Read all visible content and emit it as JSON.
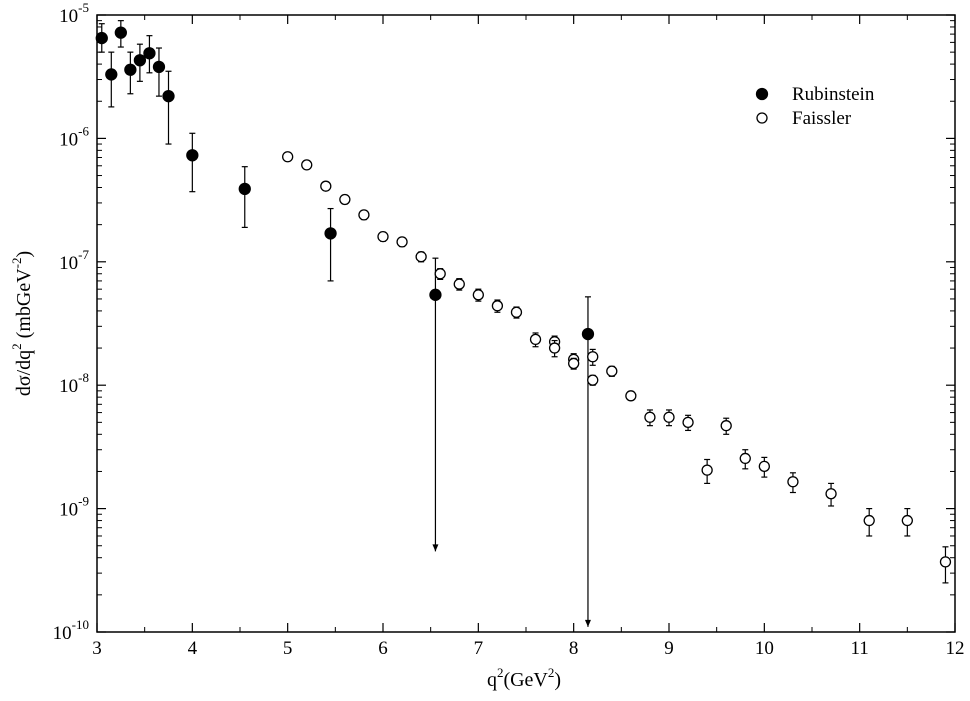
{
  "chart_data": {
    "type": "scatter",
    "title": "",
    "xlabel": {
      "base": "q",
      "sup1": "2",
      "middle": "(GeV",
      "sup2": "2",
      "end": ")"
    },
    "ylabel": {
      "base": "dσ/dq",
      "sup1": "2",
      "middle": " (mbGeV",
      "sup2": "-2",
      "end": ")"
    },
    "xlim": [
      3,
      12
    ],
    "ylim": [
      1e-10,
      1e-05
    ],
    "yscale": "log",
    "grid": false,
    "legend_position": "top-right",
    "x_ticks": [
      "3",
      "4",
      "5",
      "6",
      "7",
      "8",
      "9",
      "10",
      "11",
      "12"
    ],
    "y_ticks": [
      {
        "base": "10",
        "exp": "-10"
      },
      {
        "base": "10",
        "exp": "-9"
      },
      {
        "base": "10",
        "exp": "-8"
      },
      {
        "base": "10",
        "exp": "-7"
      },
      {
        "base": "10",
        "exp": "-6"
      },
      {
        "base": "10",
        "exp": "-5"
      }
    ],
    "series": [
      {
        "name": "Rubinstein",
        "marker": "filled-circle",
        "color": "#000000",
        "points": [
          {
            "x": 3.05,
            "y": 6.5e-06,
            "lo": 5e-06,
            "hi": 8.5e-06
          },
          {
            "x": 3.15,
            "y": 3.3e-06,
            "lo": 1.8e-06,
            "hi": 5e-06
          },
          {
            "x": 3.25,
            "y": 7.2e-06,
            "lo": 5.5e-06,
            "hi": 9e-06
          },
          {
            "x": 3.35,
            "y": 3.6e-06,
            "lo": 2.3e-06,
            "hi": 5e-06
          },
          {
            "x": 3.45,
            "y": 4.3e-06,
            "lo": 2.9e-06,
            "hi": 5.8e-06
          },
          {
            "x": 3.55,
            "y": 4.9e-06,
            "lo": 3.4e-06,
            "hi": 6.8e-06
          },
          {
            "x": 3.65,
            "y": 3.8e-06,
            "lo": 2.2e-06,
            "hi": 5.4e-06
          },
          {
            "x": 3.75,
            "y": 2.2e-06,
            "lo": 9e-07,
            "hi": 3.5e-06
          },
          {
            "x": 4.0,
            "y": 7.3e-07,
            "lo": 3.7e-07,
            "hi": 1.1e-06
          },
          {
            "x": 4.55,
            "y": 3.9e-07,
            "lo": 1.9e-07,
            "hi": 5.9e-07
          },
          {
            "x": 5.45,
            "y": 1.7e-07,
            "lo": 7e-08,
            "hi": 2.7e-07
          },
          {
            "x": 6.55,
            "y": 5.4e-08,
            "lo": 4.5e-10,
            "hi": 1.07e-07,
            "arrow_down": true
          },
          {
            "x": 8.15,
            "y": 2.6e-08,
            "lo": 1.1e-10,
            "hi": 5.2e-08,
            "arrow_down": true
          }
        ]
      },
      {
        "name": "Faissler",
        "marker": "open-circle",
        "color": "#000000",
        "points": [
          {
            "x": 5.0,
            "y": 7.1e-07,
            "lo": 6.7e-07,
            "hi": 7.5e-07
          },
          {
            "x": 5.2,
            "y": 6.1e-07,
            "lo": 5.7e-07,
            "hi": 6.5e-07
          },
          {
            "x": 5.4,
            "y": 4.1e-07,
            "lo": 3.8e-07,
            "hi": 4.4e-07
          },
          {
            "x": 5.6,
            "y": 3.2e-07,
            "lo": 2.95e-07,
            "hi": 3.45e-07
          },
          {
            "x": 5.8,
            "y": 2.4e-07,
            "lo": 2.2e-07,
            "hi": 2.6e-07
          },
          {
            "x": 6.0,
            "y": 1.6e-07,
            "lo": 1.47e-07,
            "hi": 1.73e-07
          },
          {
            "x": 6.2,
            "y": 1.45e-07,
            "lo": 1.33e-07,
            "hi": 1.57e-07
          },
          {
            "x": 6.4,
            "y": 1.1e-07,
            "lo": 1e-07,
            "hi": 1.2e-07
          },
          {
            "x": 6.6,
            "y": 8e-08,
            "lo": 7.2e-08,
            "hi": 8.8e-08
          },
          {
            "x": 6.8,
            "y": 6.6e-08,
            "lo": 5.9e-08,
            "hi": 7.3e-08
          },
          {
            "x": 7.0,
            "y": 5.4e-08,
            "lo": 4.8e-08,
            "hi": 6e-08
          },
          {
            "x": 7.2,
            "y": 4.4e-08,
            "lo": 3.9e-08,
            "hi": 4.9e-08
          },
          {
            "x": 7.4,
            "y": 3.9e-08,
            "lo": 3.5e-08,
            "hi": 4.3e-08
          },
          {
            "x": 7.6,
            "y": 2.35e-08,
            "lo": 2.05e-08,
            "hi": 2.65e-08
          },
          {
            "x": 7.8,
            "y": 2.25e-08,
            "lo": 2e-08,
            "hi": 2.5e-08
          },
          {
            "x": 7.8,
            "y": 2e-08,
            "lo": 1.7e-08,
            "hi": 2.3e-08
          },
          {
            "x": 8.0,
            "y": 1.62e-08,
            "lo": 1.45e-08,
            "hi": 1.8e-08
          },
          {
            "x": 8.0,
            "y": 1.5e-08,
            "lo": 1.35e-08,
            "hi": 1.65e-08
          },
          {
            "x": 8.2,
            "y": 1.7e-08,
            "lo": 1.45e-08,
            "hi": 1.95e-08
          },
          {
            "x": 8.2,
            "y": 1.1e-08,
            "lo": 1e-08,
            "hi": 1.2e-08
          },
          {
            "x": 8.4,
            "y": 1.3e-08,
            "lo": 1.18e-08,
            "hi": 1.42e-08
          },
          {
            "x": 8.6,
            "y": 8.2e-09,
            "lo": 7.6e-09,
            "hi": 8.8e-09
          },
          {
            "x": 8.8,
            "y": 5.5e-09,
            "lo": 4.7e-09,
            "hi": 6.3e-09
          },
          {
            "x": 9.0,
            "y": 5.5e-09,
            "lo": 4.7e-09,
            "hi": 6.3e-09
          },
          {
            "x": 9.2,
            "y": 5e-09,
            "lo": 4.3e-09,
            "hi": 5.7e-09
          },
          {
            "x": 9.4,
            "y": 2.05e-09,
            "lo": 1.6e-09,
            "hi": 2.5e-09
          },
          {
            "x": 9.6,
            "y": 4.7e-09,
            "lo": 4e-09,
            "hi": 5.4e-09
          },
          {
            "x": 9.8,
            "y": 2.55e-09,
            "lo": 2.1e-09,
            "hi": 3e-09
          },
          {
            "x": 10.0,
            "y": 2.2e-09,
            "lo": 1.8e-09,
            "hi": 2.6e-09
          },
          {
            "x": 10.3,
            "y": 1.65e-09,
            "lo": 1.35e-09,
            "hi": 1.95e-09
          },
          {
            "x": 10.7,
            "y": 1.32e-09,
            "lo": 1.05e-09,
            "hi": 1.6e-09
          },
          {
            "x": 11.1,
            "y": 8e-10,
            "lo": 6e-10,
            "hi": 1e-09
          },
          {
            "x": 11.5,
            "y": 8e-10,
            "lo": 6e-10,
            "hi": 1e-09
          },
          {
            "x": 11.9,
            "y": 3.7e-10,
            "lo": 2.5e-10,
            "hi": 4.9e-10
          }
        ]
      }
    ]
  }
}
